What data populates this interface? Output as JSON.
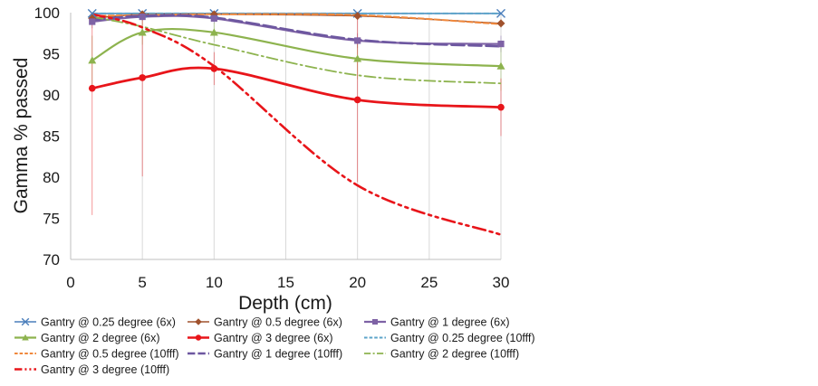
{
  "chart_data": {
    "type": "line",
    "title": "",
    "xlabel": "Depth (cm)",
    "ylabel": "Gamma % passed",
    "xlim": [
      0,
      30
    ],
    "ylim": [
      70,
      100
    ],
    "xticks": [
      0,
      5,
      10,
      15,
      20,
      25,
      30
    ],
    "yticks": [
      70,
      75,
      80,
      85,
      90,
      95,
      100
    ],
    "grid": "vertical",
    "legend_position": "bottom",
    "x": [
      1.5,
      5,
      10,
      20,
      30
    ],
    "series": [
      {
        "name": "Gantry @ 0.25 degree (6x)",
        "color": "#4a7ebb",
        "style": "solid-thin",
        "marker": "cross",
        "values": [
          99.9,
          99.9,
          99.9,
          99.9,
          99.9
        ],
        "err": [
          0.1,
          0.1,
          0.1,
          0.1,
          0.1
        ]
      },
      {
        "name": "Gantry @ 0.5 degree (6x)",
        "color": "#a0522d",
        "style": "solid-thin",
        "marker": "diamond",
        "values": [
          99.3,
          99.8,
          99.8,
          99.6,
          98.7
        ],
        "err": [
          0.4,
          0.2,
          0.2,
          0.3,
          0.5
        ]
      },
      {
        "name": "Gantry @ 1 degree (6x)",
        "color": "#7e62a5",
        "style": "solid",
        "marker": "square",
        "values": [
          98.9,
          99.5,
          99.3,
          96.6,
          96.2
        ],
        "err": [
          0.8,
          0.5,
          0.6,
          0.9,
          1.0
        ]
      },
      {
        "name": "Gantry @ 2 degree (6x)",
        "color": "#8db34e",
        "style": "solid",
        "marker": "triangle",
        "values": [
          94.2,
          97.6,
          97.6,
          94.4,
          93.5
        ],
        "err": [
          3.0,
          1.5,
          1.2,
          2.5,
          3.0
        ]
      },
      {
        "name": "Gantry @ 3 degree (6x)",
        "color": "#e8151a",
        "style": "solid-thick",
        "marker": "circle",
        "values": [
          90.8,
          92.1,
          93.2,
          89.4,
          88.5
        ],
        "err": [
          15.4,
          12.0,
          2.0,
          10.0,
          3.5
        ]
      },
      {
        "name": "Gantry @ 0.25 degree (10fff)",
        "color": "#5ca3c9",
        "style": "dash",
        "marker": "none",
        "values": [
          99.9,
          99.9,
          99.9,
          99.9,
          99.9
        ],
        "err": []
      },
      {
        "name": "Gantry @ 0.5 degree (10fff)",
        "color": "#f0883c",
        "style": "dash",
        "marker": "none",
        "values": [
          99.6,
          99.7,
          99.8,
          99.7,
          98.6
        ],
        "err": []
      },
      {
        "name": "Gantry @ 1 degree (10fff)",
        "color": "#6d57a0",
        "style": "longdash",
        "marker": "none",
        "values": [
          99.1,
          99.6,
          99.4,
          96.7,
          95.9
        ],
        "err": []
      },
      {
        "name": "Gantry @ 2 degree (10fff)",
        "color": "#8db34e",
        "style": "dashdot",
        "marker": "none",
        "values": [
          99.5,
          98.3,
          96.1,
          92.4,
          91.4
        ],
        "err": []
      },
      {
        "name": "Gantry @ 3 degree (10fff)",
        "color": "#e8151a",
        "style": "dashdotdot-thick",
        "marker": "none",
        "values": [
          99.8,
          98.2,
          93.5,
          79.0,
          73.0
        ],
        "err": []
      }
    ]
  }
}
